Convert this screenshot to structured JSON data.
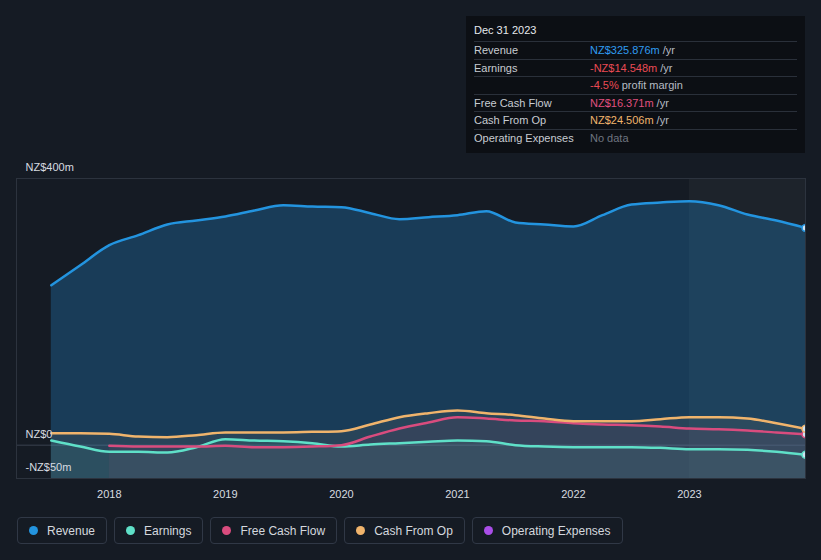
{
  "chart_data": {
    "type": "line",
    "legend": "bottom",
    "x": [
      2017.5,
      2017.75,
      2018.0,
      2018.25,
      2018.5,
      2018.75,
      2019.0,
      2019.25,
      2019.5,
      2019.75,
      2020.0,
      2020.25,
      2020.5,
      2020.75,
      2021.0,
      2021.25,
      2021.5,
      2021.75,
      2022.0,
      2022.25,
      2022.5,
      2022.75,
      2023.0,
      2023.25,
      2023.5,
      2023.75,
      2024.0
    ],
    "xlim": [
      2017.2,
      2024.0
    ],
    "xticks": [
      2018,
      2019,
      2020,
      2021,
      2022,
      2023
    ],
    "ylim": [
      -50,
      400
    ],
    "yticks": [
      {
        "value": -50,
        "label": "-NZ$50m"
      },
      {
        "value": 0,
        "label": "NZ$0"
      },
      {
        "value": 400,
        "label": "NZ$400m"
      }
    ],
    "grid": true,
    "highlight_x": [
      2023.0,
      2024.0
    ],
    "series": [
      {
        "name": "Revenue",
        "color": "#2394df",
        "values": [
          240,
          270,
          300,
          315,
          331,
          337,
          343,
          352,
          360,
          358,
          357,
          348,
          339,
          342,
          345,
          351,
          334,
          331,
          328,
          345,
          361,
          364,
          366,
          360,
          346,
          337,
          325.9
        ]
      },
      {
        "name": "Earnings",
        "color": "#5fe0c8",
        "values": [
          7,
          -2,
          -10,
          -10,
          -11,
          -3,
          9,
          7,
          6,
          3,
          -2,
          1,
          3,
          5,
          7,
          6,
          0,
          -2,
          -3,
          -3,
          -3,
          -4,
          -6,
          -6,
          -7,
          -10,
          -14.5
        ]
      },
      {
        "name": "Free Cash Flow",
        "color": "#d94c7e",
        "values": [
          null,
          null,
          -1,
          -2,
          -2,
          -2,
          -1,
          -3,
          -3,
          -2,
          0,
          13,
          25,
          34,
          42,
          40,
          37,
          36,
          33,
          31,
          30,
          28,
          25,
          24,
          22,
          19,
          16.4
        ]
      },
      {
        "name": "Cash From Op",
        "color": "#f0b46c",
        "values": [
          18,
          18,
          17,
          13,
          12,
          15,
          19,
          19,
          19,
          20,
          21,
          31,
          42,
          48,
          52,
          48,
          45,
          40,
          36,
          36,
          36,
          39,
          42,
          42,
          40,
          33,
          24.5
        ]
      },
      {
        "name": "Operating Expenses",
        "color": "#a94ee8",
        "values": [
          null,
          null,
          null,
          null,
          null,
          null,
          null,
          null,
          null,
          null,
          null,
          null,
          null,
          null,
          null,
          null,
          null,
          null,
          null,
          null,
          null,
          null,
          null,
          null,
          null,
          null,
          null
        ]
      }
    ],
    "tooltip": {
      "title": "Dec 31 2023",
      "rows": [
        {
          "label": "Revenue",
          "value": "NZ$325.876m",
          "unit": "/yr",
          "color": "#2f9bf0"
        },
        {
          "label": "Earnings",
          "value": "-NZ$14.548m",
          "unit": "/yr",
          "color": "#ea4b55"
        },
        {
          "value": "-4.5%",
          "unit": "profit margin",
          "color": "#ea4b55"
        },
        {
          "label": "Free Cash Flow",
          "value": "NZ$16.371m",
          "unit": "/yr",
          "color": "#e0507f"
        },
        {
          "label": "Cash From Op",
          "value": "NZ$24.506m",
          "unit": "/yr",
          "color": "#f0b46c"
        },
        {
          "label": "Operating Expenses",
          "value": "No data",
          "color": "#6f7580"
        }
      ]
    }
  }
}
